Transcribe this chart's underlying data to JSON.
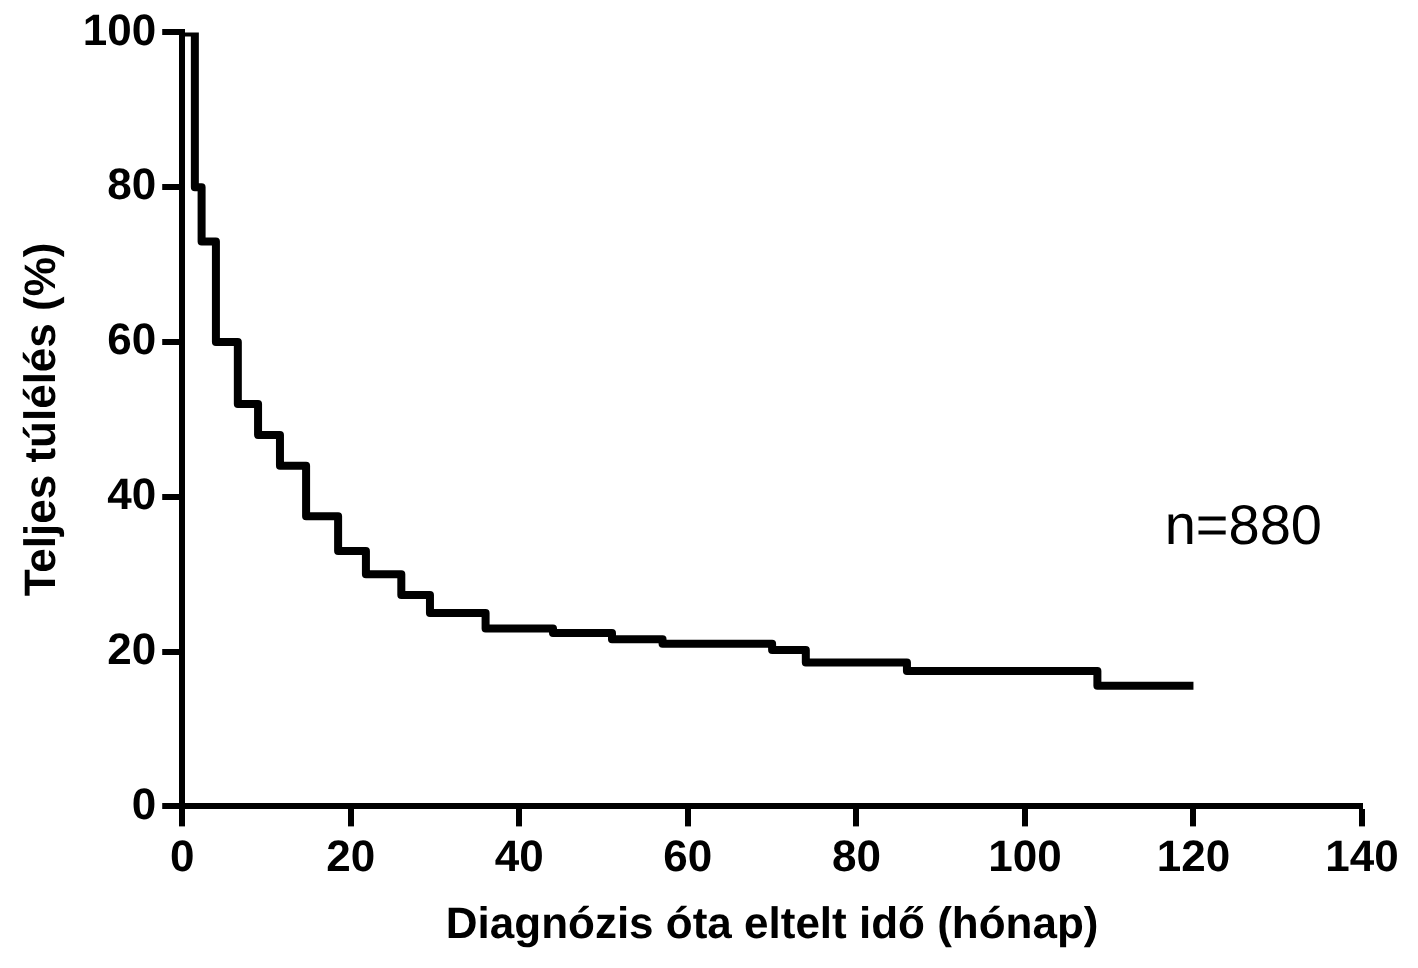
{
  "chart_data": {
    "type": "step",
    "xlabel": "Diagnózis óta eltelt idő (hónap)",
    "ylabel": "Teljes túlélés (%)",
    "xlim": [
      0,
      140
    ],
    "xticks": [
      0,
      20,
      40,
      60,
      80,
      100,
      120,
      140
    ],
    "ylim": [
      0,
      100
    ],
    "yticks": [
      0,
      20,
      40,
      60,
      80,
      100
    ],
    "grid": false,
    "legend": false,
    "marker": "none",
    "line_style": "solid",
    "annotations": [
      "n=880"
    ],
    "series": [
      {
        "color": "#000000",
        "x": [
          0,
          1.5,
          2.3,
          4,
          6.6,
          9,
          11.6,
          14.7,
          18.5,
          21.8,
          26,
          29.4,
          36,
          44,
          51,
          57,
          70,
          74,
          86,
          108.6,
          108.6,
          120
        ],
        "values": [
          100,
          80,
          73,
          60,
          52,
          48,
          44,
          37.5,
          33,
          30,
          27.3,
          25,
          23,
          22.4,
          21.6,
          21,
          20.2,
          18.6,
          17.5,
          17.5,
          15.6,
          15.6
        ]
      }
    ]
  }
}
